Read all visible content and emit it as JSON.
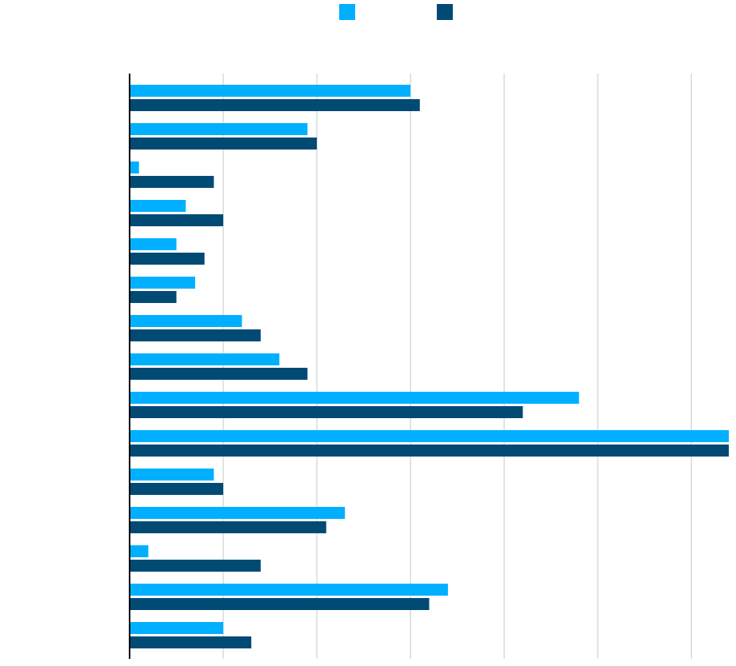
{
  "chart_data": {
    "type": "bar",
    "orientation": "horizontal",
    "categories": [
      "",
      "",
      "",
      "",
      "",
      "",
      "",
      "",
      "",
      "",
      "",
      "",
      "",
      "",
      ""
    ],
    "series": [
      {
        "name": "",
        "color": "#00B0FF",
        "values": [
          30,
          19,
          1,
          6,
          5,
          7,
          12,
          16,
          48,
          64,
          9,
          23,
          2,
          34,
          10
        ]
      },
      {
        "name": "",
        "color": "#004A74",
        "values": [
          31,
          20,
          9,
          10,
          8,
          5,
          14,
          19,
          42,
          64,
          10,
          21,
          14,
          32,
          13
        ]
      }
    ],
    "title": "",
    "xlabel": "",
    "ylabel": "",
    "xlim": [
      0,
      64
    ],
    "gridlines": [
      10,
      20,
      30,
      40,
      50,
      60
    ],
    "grid": true,
    "legend": "top-center"
  }
}
